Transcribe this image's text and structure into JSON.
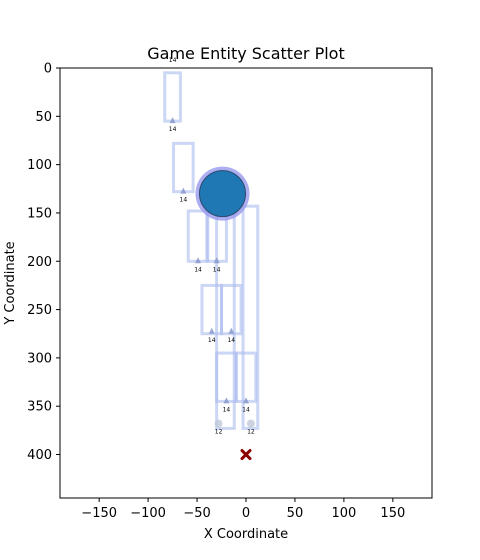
{
  "chart_data": {
    "type": "scatter",
    "title": "Game Entity Scatter Plot",
    "xlabel": "X Coordinate",
    "ylabel": "Y Coordinate",
    "xlim": [
      -190,
      190
    ],
    "ylim": [
      445,
      0
    ],
    "y_inverted": true,
    "grid": false,
    "xticks": [
      -150,
      -100,
      -50,
      0,
      50,
      100,
      150
    ],
    "yticks": [
      0,
      50,
      100,
      150,
      200,
      250,
      300,
      350,
      400
    ],
    "colors": {
      "rect_stroke": "#aabbee",
      "marker": "#8899cc",
      "player_fill": "#1f77b4",
      "player_ring": "#9999ee",
      "target": "#8b0000",
      "small_circle": "#c0c8d8"
    },
    "rectangles": [
      {
        "x": -83,
        "y": 5,
        "w": 16,
        "h": 50
      },
      {
        "x": -74,
        "y": 78,
        "w": 20,
        "h": 50
      },
      {
        "x": -59,
        "y": 148,
        "w": 20,
        "h": 52
      },
      {
        "x": -40,
        "y": 148,
        "w": 20,
        "h": 52
      },
      {
        "x": -30,
        "y": 148,
        "w": 18,
        "h": 225
      },
      {
        "x": -3,
        "y": 143,
        "w": 15,
        "h": 230
      },
      {
        "x": -45,
        "y": 225,
        "w": 20,
        "h": 50
      },
      {
        "x": -25,
        "y": 225,
        "w": 20,
        "h": 50
      },
      {
        "x": -30,
        "y": 295,
        "w": 20,
        "h": 50
      },
      {
        "x": -10,
        "y": 295,
        "w": 20,
        "h": 50
      }
    ],
    "markers": [
      {
        "x": -75,
        "y": 55,
        "label": "14"
      },
      {
        "x": -64,
        "y": 128,
        "label": "14"
      },
      {
        "x": -49,
        "y": 200,
        "label": "14"
      },
      {
        "x": -30,
        "y": 200,
        "label": "14"
      },
      {
        "x": -35,
        "y": 273,
        "label": "14"
      },
      {
        "x": -15,
        "y": 273,
        "label": "14"
      },
      {
        "x": -20,
        "y": 345,
        "label": "14"
      },
      {
        "x": 0,
        "y": 345,
        "label": "14"
      }
    ],
    "top_label": {
      "x": -75,
      "y": -8,
      "label": "14"
    },
    "small_circles": [
      {
        "x": -28,
        "y": 368,
        "label": "12"
      },
      {
        "x": 5,
        "y": 368,
        "label": "12"
      }
    ],
    "player": {
      "x": -24,
      "y": 130
    },
    "target": {
      "x": 0,
      "y": 400
    }
  }
}
